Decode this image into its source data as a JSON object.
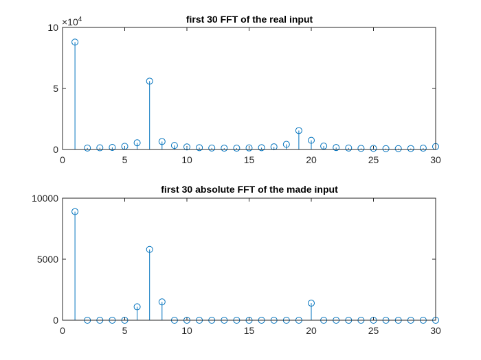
{
  "chart_data": [
    {
      "type": "stem",
      "title": "first 30 FFT of the real input",
      "xlabel": "",
      "ylabel": "",
      "xlim": [
        0,
        30
      ],
      "ylim": [
        0,
        100000
      ],
      "exponent_label": "×10",
      "exponent_power": "4",
      "x_ticks": [
        0,
        5,
        10,
        15,
        20,
        25,
        30
      ],
      "x_tick_labels": [
        "0",
        "5",
        "10",
        "15",
        "20",
        "25",
        "30"
      ],
      "y_ticks": [
        0,
        50000,
        100000
      ],
      "y_tick_labels": [
        "0",
        "5",
        "10"
      ],
      "grid": false,
      "color": "#0072BD",
      "x": [
        1,
        2,
        3,
        4,
        5,
        6,
        7,
        8,
        9,
        10,
        11,
        12,
        13,
        14,
        15,
        16,
        17,
        18,
        19,
        20,
        21,
        22,
        23,
        24,
        25,
        26,
        27,
        28,
        29,
        30
      ],
      "values": [
        88000,
        1200,
        1400,
        1700,
        2600,
        5500,
        56000,
        6500,
        3300,
        2100,
        1500,
        1200,
        1100,
        1100,
        1300,
        1500,
        2200,
        4200,
        15500,
        7500,
        2800,
        1600,
        1200,
        900,
        900,
        700,
        700,
        800,
        1100,
        2400
      ]
    },
    {
      "type": "stem",
      "title": "first 30 absolute FFT of the made input",
      "xlabel": "",
      "ylabel": "",
      "xlim": [
        0,
        30
      ],
      "ylim": [
        0,
        10000
      ],
      "x_ticks": [
        0,
        5,
        10,
        15,
        20,
        25,
        30
      ],
      "x_tick_labels": [
        "0",
        "5",
        "10",
        "15",
        "20",
        "25",
        "30"
      ],
      "y_ticks": [
        0,
        5000,
        10000
      ],
      "y_tick_labels": [
        "0",
        "5000",
        "10000"
      ],
      "grid": false,
      "color": "#0072BD",
      "x": [
        1,
        2,
        3,
        4,
        5,
        6,
        7,
        8,
        9,
        10,
        11,
        12,
        13,
        14,
        15,
        16,
        17,
        18,
        19,
        20,
        21,
        22,
        23,
        24,
        25,
        26,
        27,
        28,
        29,
        30
      ],
      "values": [
        8900,
        0,
        0,
        0,
        0,
        1100,
        5800,
        1500,
        0,
        0,
        0,
        0,
        0,
        0,
        0,
        0,
        0,
        0,
        0,
        1400,
        0,
        0,
        0,
        0,
        0,
        0,
        0,
        0,
        0,
        0
      ]
    }
  ]
}
